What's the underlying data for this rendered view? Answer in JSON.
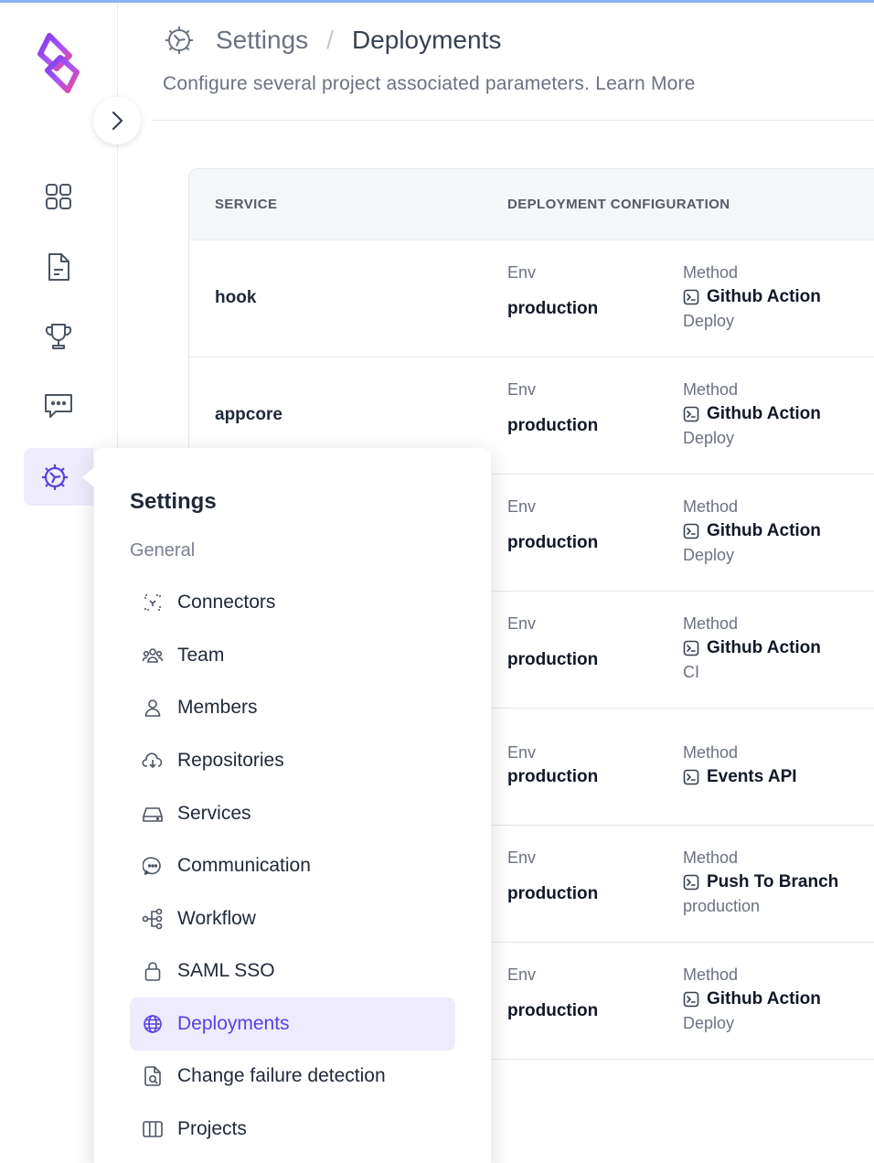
{
  "header": {
    "crumb_parent": "Settings",
    "crumb_sep": "/",
    "crumb_current": "Deployments",
    "subtitle": "Configure several project associated parameters.",
    "learn_more": "Learn More"
  },
  "rail": {
    "icons": [
      "dashboard-grid-icon",
      "document-icon",
      "trophy-icon",
      "chat-icon",
      "settings-gear-icon"
    ],
    "active": "settings-gear-icon"
  },
  "table": {
    "headers": {
      "service": "SERVICE",
      "config": "DEPLOYMENT CONFIGURATION"
    },
    "rows": [
      {
        "service": "hook",
        "env_label": "Env",
        "env": "production",
        "method_label": "Method",
        "method": "Github Action",
        "sub": "Deploy"
      },
      {
        "service": "appcore",
        "env_label": "Env",
        "env": "production",
        "method_label": "Method",
        "method": "Github Action",
        "sub": "Deploy"
      },
      {
        "service": "",
        "env_label": "Env",
        "env": "production",
        "method_label": "Method",
        "method": "Github Action",
        "sub": "Deploy"
      },
      {
        "service": "",
        "env_label": "Env",
        "env": "production",
        "method_label": "Method",
        "method": "Github Action",
        "sub": "CI"
      },
      {
        "service": "",
        "env_label": "Env",
        "env": "production",
        "method_label": "Method",
        "method": "Events API",
        "sub": ""
      },
      {
        "service": "",
        "env_label": "Env",
        "env": "production",
        "method_label": "Method",
        "method": "Push To Branch",
        "sub": "production"
      },
      {
        "service": "",
        "env_label": "Env",
        "env": "production",
        "method_label": "Method",
        "method": "Github Action",
        "sub": "Deploy"
      }
    ]
  },
  "menu": {
    "title": "Settings",
    "group": "General",
    "items": [
      {
        "label": "Connectors",
        "icon": "connectors-icon"
      },
      {
        "label": "Team",
        "icon": "team-icon"
      },
      {
        "label": "Members",
        "icon": "user-icon"
      },
      {
        "label": "Repositories",
        "icon": "cloud-download-icon"
      },
      {
        "label": "Services",
        "icon": "drive-icon"
      },
      {
        "label": "Communication",
        "icon": "chat-bubble-icon"
      },
      {
        "label": "Workflow",
        "icon": "workflow-icon"
      },
      {
        "label": "SAML SSO",
        "icon": "lock-icon"
      },
      {
        "label": "Deployments",
        "icon": "globe-icon",
        "active": true
      },
      {
        "label": "Change failure detection",
        "icon": "file-search-icon"
      },
      {
        "label": "Projects",
        "icon": "columns-icon"
      }
    ]
  },
  "colors": {
    "accent": "#5b3fe0",
    "active_bg": "#eeebfd",
    "topbar": "#8ab4f8"
  }
}
